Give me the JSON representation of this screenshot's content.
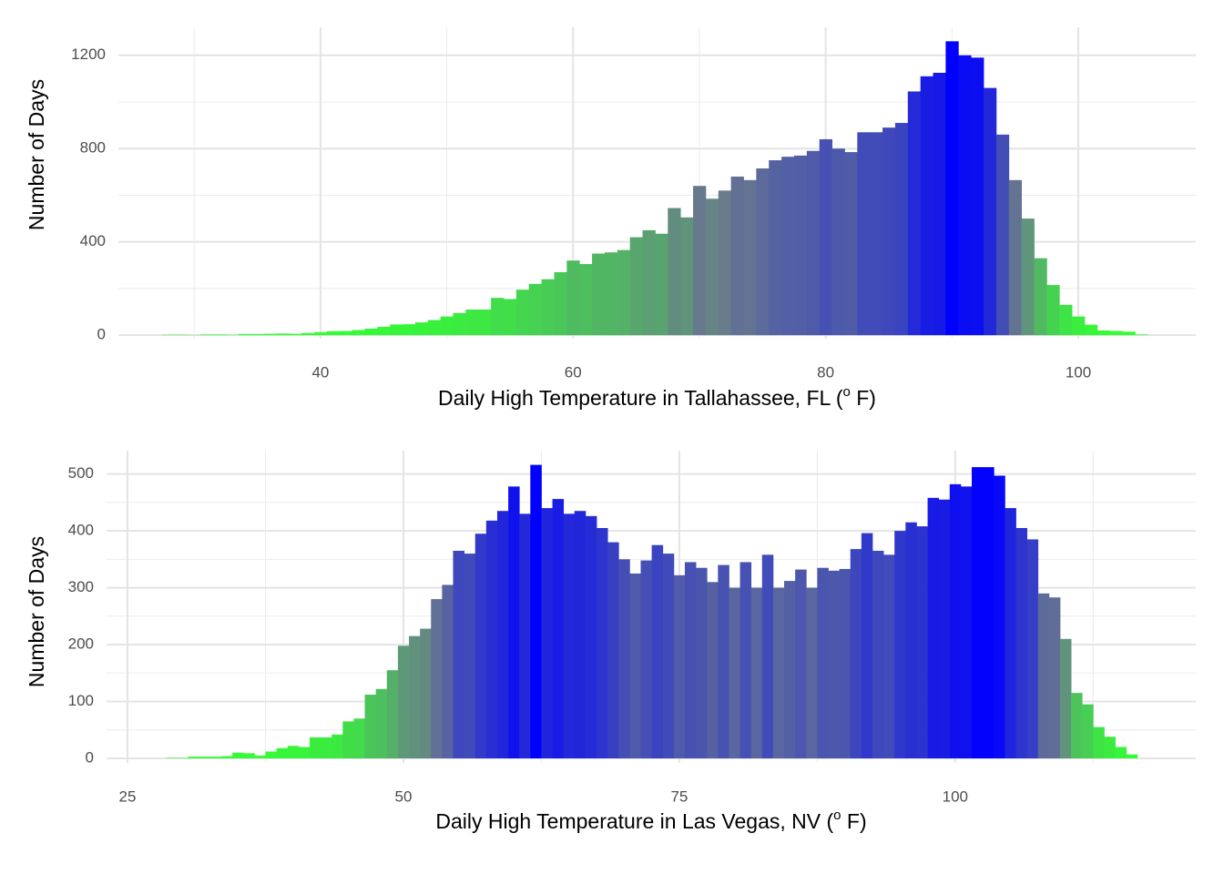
{
  "chart_data": [
    {
      "type": "histogram",
      "x_label": [
        "Daily High Temperature in Tallahassee, FL (",
        "o",
        " F)"
      ],
      "y_label": "Number of Days",
      "bins": [
        27.5,
        28.5,
        29.5,
        30.5,
        31.5,
        32.5,
        33.5,
        34.5,
        35.5,
        36.5,
        37.5,
        38.5,
        39.5,
        40.5,
        41.5,
        42.5,
        43.5,
        44.5,
        45.5,
        46.5,
        47.5,
        48.5,
        49.5,
        50.5,
        51.5,
        52.5,
        53.5,
        54.5,
        55.5,
        56.5,
        57.5,
        58.5,
        59.5,
        60.5,
        61.5,
        62.5,
        63.5,
        64.5,
        65.5,
        66.5,
        67.5,
        68.5,
        69.5,
        70.5,
        71.5,
        72.5,
        73.5,
        74.5,
        75.5,
        76.5,
        77.5,
        78.5,
        79.5,
        80.5,
        81.5,
        82.5,
        83.5,
        84.5,
        85.5,
        86.5,
        87.5,
        88.5,
        89.5,
        90.5,
        91.5,
        92.5,
        93.5,
        94.5,
        95.5,
        96.5,
        97.5,
        98.5,
        99.5,
        100.5,
        101.5,
        102.5,
        103.5,
        104.5,
        105.5
      ],
      "values": [
        2,
        2,
        1,
        3,
        3,
        2,
        5,
        5,
        6,
        7,
        6,
        9,
        13,
        17,
        18,
        22,
        28,
        36,
        46,
        47,
        55,
        65,
        80,
        95,
        110,
        110,
        160,
        155,
        195,
        220,
        240,
        270,
        320,
        305,
        350,
        355,
        365,
        420,
        450,
        435,
        545,
        505,
        640,
        585,
        620,
        680,
        665,
        715,
        750,
        765,
        770,
        790,
        840,
        800,
        785,
        870,
        870,
        890,
        910,
        1045,
        1110,
        1125,
        1260,
        1200,
        1190,
        1060,
        860,
        665,
        500,
        330,
        215,
        130,
        80,
        45,
        20,
        18,
        15,
        3
      ],
      "color_scale": [
        "#33ff33",
        "#6a7a8c",
        "#0000ff"
      ],
      "xlim": [
        24,
        109.3
      ],
      "xticks": [
        40,
        60,
        80,
        100
      ],
      "xminor": [
        30,
        50,
        70,
        90
      ],
      "ylim": [
        -15,
        1320
      ],
      "yticks": [
        0,
        400,
        800,
        1200
      ],
      "yminor": [
        200,
        600,
        1000
      ],
      "grid": true
    },
    {
      "type": "histogram",
      "x_label": [
        "Daily High Temperature in Las Vegas, NV (",
        "o",
        " F)"
      ],
      "y_label": "Number of Days",
      "bins": [
        28.5,
        29.5,
        30.5,
        31.5,
        32.5,
        33.5,
        34.5,
        35.5,
        36.5,
        37.5,
        38.5,
        39.5,
        40.5,
        41.5,
        42.5,
        43.5,
        44.5,
        45.5,
        46.5,
        47.5,
        48.5,
        49.5,
        50.5,
        51.5,
        52.5,
        53.5,
        54.5,
        55.5,
        56.5,
        57.5,
        58.5,
        59.5,
        60.5,
        61.5,
        62.5,
        63.5,
        64.5,
        65.5,
        66.5,
        67.5,
        68.5,
        69.5,
        70.5,
        71.5,
        72.5,
        73.5,
        74.5,
        75.5,
        76.5,
        77.5,
        78.5,
        79.5,
        80.5,
        81.5,
        82.5,
        83.5,
        84.5,
        85.5,
        86.5,
        87.5,
        88.5,
        89.5,
        90.5,
        91.5,
        92.5,
        93.5,
        94.5,
        95.5,
        96.5,
        97.5,
        98.5,
        99.5,
        100.5,
        101.5,
        102.5,
        103.5,
        104.5,
        105.5,
        106.5,
        107.5,
        108.5,
        109.5,
        110.5,
        111.5,
        112.5,
        113.5,
        114.5,
        115.5,
        116.5
      ],
      "values": [
        1,
        1,
        3,
        3,
        3,
        4,
        10,
        9,
        5,
        12,
        18,
        22,
        20,
        37,
        37,
        42,
        65,
        70,
        112,
        122,
        155,
        198,
        215,
        228,
        280,
        305,
        365,
        360,
        395,
        418,
        435,
        478,
        430,
        516,
        440,
        456,
        430,
        435,
        426,
        405,
        380,
        350,
        325,
        348,
        375,
        360,
        322,
        345,
        335,
        310,
        340,
        300,
        345,
        300,
        358,
        300,
        312,
        332,
        300,
        335,
        330,
        333,
        368,
        396,
        365,
        358,
        400,
        415,
        408,
        458,
        455,
        482,
        478,
        512,
        512,
        497,
        440,
        405,
        385,
        290,
        283,
        210,
        115,
        95,
        55,
        38,
        20,
        7
      ],
      "color_scale": [
        "#33ff33",
        "#6a7a8c",
        "#0000ff"
      ],
      "xlim": [
        23.1,
        121.8
      ],
      "xticks": [
        25,
        50,
        75,
        100
      ],
      "xminor": [
        37.5,
        62.5,
        87.5,
        112.5
      ],
      "ylim": [
        -8,
        541
      ],
      "yticks": [
        0,
        100,
        200,
        300,
        400,
        500
      ],
      "yminor": [
        50,
        150,
        250,
        350,
        450
      ],
      "grid": true
    }
  ]
}
